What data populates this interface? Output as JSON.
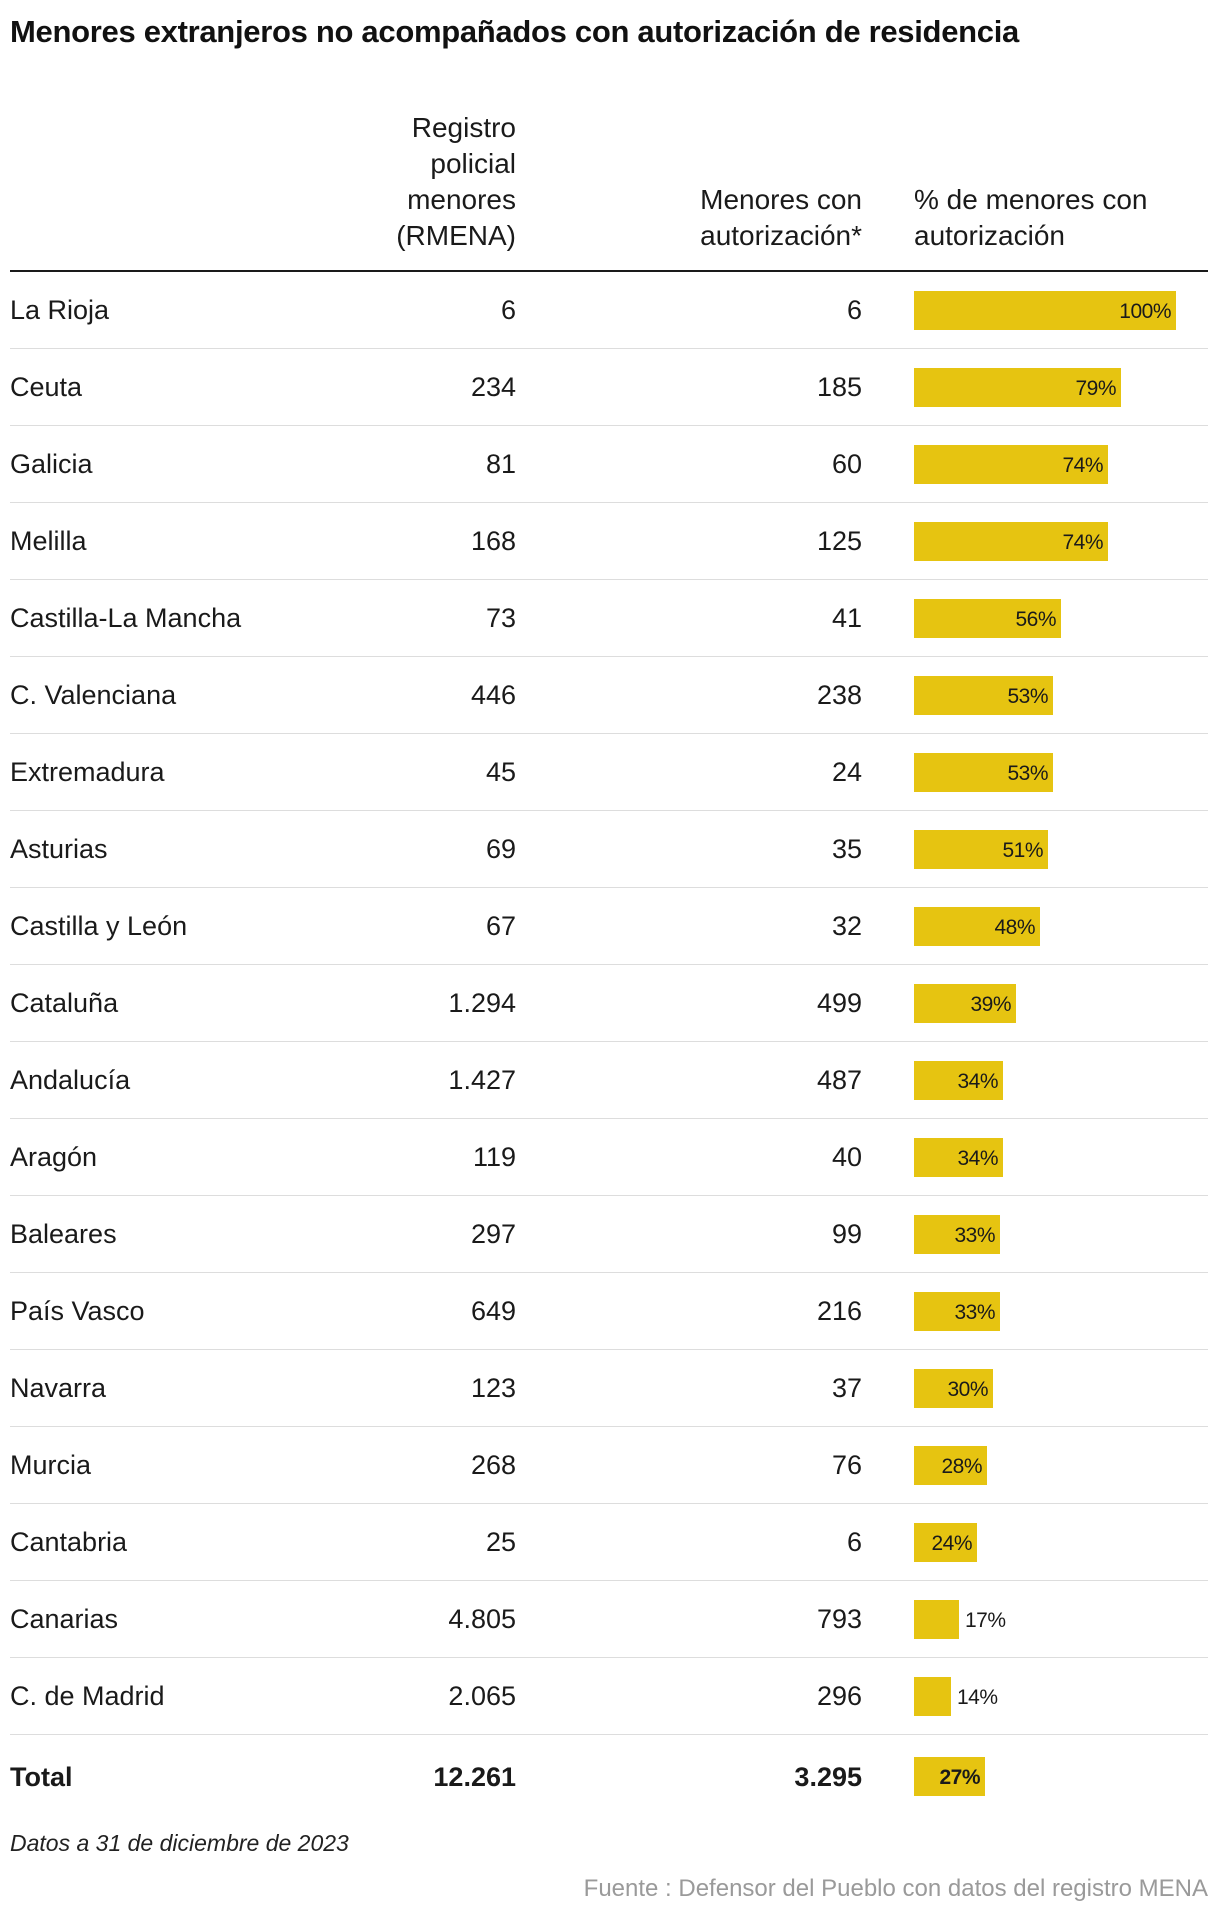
{
  "title": "Menores extranjeros no acompañados con autorización de residencia",
  "headers": {
    "region": "",
    "rmena": "Registro\npolicial\nmenores\n(RMENA)",
    "auth": "Menores con\nautorización*",
    "pct": "% de menores con\nautorización"
  },
  "bar_color": "#e6c411",
  "chart_data": {
    "type": "table",
    "columns": [
      "",
      "Registro policial menores (RMENA)",
      "Menores con autorización*",
      "% de menores con autorización"
    ],
    "rows": [
      {
        "region": "La Rioja",
        "rmena": "6",
        "auth": "6",
        "pct": 100,
        "pct_label": "100%"
      },
      {
        "region": "Ceuta",
        "rmena": "234",
        "auth": "185",
        "pct": 79,
        "pct_label": "79%"
      },
      {
        "region": "Galicia",
        "rmena": "81",
        "auth": "60",
        "pct": 74,
        "pct_label": "74%"
      },
      {
        "region": "Melilla",
        "rmena": "168",
        "auth": "125",
        "pct": 74,
        "pct_label": "74%"
      },
      {
        "region": "Castilla-La Mancha",
        "rmena": "73",
        "auth": "41",
        "pct": 56,
        "pct_label": "56%"
      },
      {
        "region": "C. Valenciana",
        "rmena": "446",
        "auth": "238",
        "pct": 53,
        "pct_label": "53%"
      },
      {
        "region": "Extremadura",
        "rmena": "45",
        "auth": "24",
        "pct": 53,
        "pct_label": "53%"
      },
      {
        "region": "Asturias",
        "rmena": "69",
        "auth": "35",
        "pct": 51,
        "pct_label": "51%"
      },
      {
        "region": "Castilla y León",
        "rmena": "67",
        "auth": "32",
        "pct": 48,
        "pct_label": "48%"
      },
      {
        "region": "Cataluña",
        "rmena": "1.294",
        "auth": "499",
        "pct": 39,
        "pct_label": "39%"
      },
      {
        "region": "Andalucía",
        "rmena": "1.427",
        "auth": "487",
        "pct": 34,
        "pct_label": "34%"
      },
      {
        "region": "Aragón",
        "rmena": "119",
        "auth": "40",
        "pct": 34,
        "pct_label": "34%"
      },
      {
        "region": "Baleares",
        "rmena": "297",
        "auth": "99",
        "pct": 33,
        "pct_label": "33%"
      },
      {
        "region": "País Vasco",
        "rmena": "649",
        "auth": "216",
        "pct": 33,
        "pct_label": "33%"
      },
      {
        "region": "Navarra",
        "rmena": "123",
        "auth": "37",
        "pct": 30,
        "pct_label": "30%"
      },
      {
        "region": "Murcia",
        "rmena": "268",
        "auth": "76",
        "pct": 28,
        "pct_label": "28%"
      },
      {
        "region": "Cantabria",
        "rmena": "25",
        "auth": "6",
        "pct": 24,
        "pct_label": "24%"
      },
      {
        "region": "Canarias",
        "rmena": "4.805",
        "auth": "793",
        "pct": 17,
        "pct_label": "17%"
      },
      {
        "region": "C. de Madrid",
        "rmena": "2.065",
        "auth": "296",
        "pct": 14,
        "pct_label": "14%"
      }
    ],
    "total": {
      "region": "Total",
      "rmena": "12.261",
      "auth": "3.295",
      "pct": 27,
      "pct_label": "27%"
    }
  },
  "note": "Datos a 31 de diciembre de 2023",
  "source": "Fuente : Defensor del Pueblo con datos del registro MENA"
}
